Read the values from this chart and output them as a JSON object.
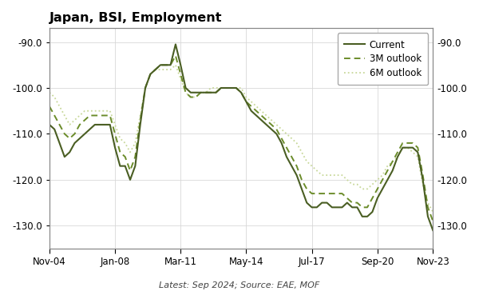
{
  "title": "Japan, BSI, Employment",
  "subtitle": "Latest: Sep 2024; Source: EAE, MOF",
  "ylim": [
    -135,
    -87
  ],
  "yticks": [
    -130.0,
    -120.0,
    -110.0,
    -100.0,
    -90.0
  ],
  "color_current": "#4a5e23",
  "color_3m": "#6b8c2a",
  "color_6m": "#c8d89a",
  "linewidth_current": 1.5,
  "linewidth_3m": 1.4,
  "linewidth_6m": 1.3,
  "x_numeric": [
    0,
    1,
    2,
    3,
    4,
    5,
    6,
    7,
    8,
    9,
    10,
    11,
    12,
    13,
    14,
    15,
    16,
    17,
    18,
    19,
    20,
    21,
    22,
    23,
    24,
    25,
    26,
    27,
    28,
    29,
    30,
    31,
    32,
    33,
    34,
    35,
    36,
    37,
    38,
    39,
    40,
    41,
    42,
    43,
    44,
    45,
    46,
    47,
    48,
    49,
    50,
    51,
    52,
    53,
    54,
    55,
    56,
    57,
    58,
    59,
    60,
    61,
    62,
    63,
    64,
    65,
    66,
    67,
    68,
    69,
    70,
    71,
    72,
    73,
    74,
    75,
    76
  ],
  "current": [
    -108,
    -109,
    -112,
    -115,
    -114,
    -112,
    -111,
    -110,
    -109,
    -108,
    -108,
    -108,
    -108,
    -113,
    -117,
    -117,
    -120,
    -117,
    -108,
    -100,
    -97,
    -96,
    -95,
    -95,
    -95,
    -90.5,
    -95,
    -100,
    -101,
    -101,
    -101,
    -101,
    -101,
    -101,
    -100,
    -100,
    -100,
    -100,
    -101,
    -103,
    -105,
    -106,
    -107,
    -108,
    -109,
    -110,
    -112,
    -115,
    -117,
    -119,
    -122,
    -125,
    -126,
    -126,
    -125,
    -125,
    -126,
    -126,
    -126,
    -125,
    -126,
    -126,
    -128,
    -128,
    -127,
    -124,
    -122,
    -120,
    -118,
    -115,
    -113,
    -113,
    -113,
    -114,
    -120,
    -128,
    -131
  ],
  "outlook_3m": [
    -104,
    -106,
    -108,
    -110,
    -111,
    -110,
    -108,
    -107,
    -106,
    -106,
    -106,
    -106,
    -106,
    -110,
    -114,
    -115,
    -118,
    -115,
    -107,
    -100,
    -97,
    -96,
    -95,
    -95,
    -95,
    -93,
    -97,
    -101,
    -102,
    -102,
    -101,
    -101,
    -101,
    -101,
    -100,
    -100,
    -100,
    -100,
    -101,
    -103,
    -104,
    -105,
    -106,
    -107,
    -108,
    -109,
    -111,
    -113,
    -115,
    -117,
    -120,
    -122,
    -123,
    -123,
    -123,
    -123,
    -123,
    -123,
    -123,
    -124,
    -125,
    -125,
    -126,
    -126,
    -124,
    -122,
    -120,
    -118,
    -116,
    -114,
    -112,
    -112,
    -112,
    -113,
    -119,
    -126,
    -129
  ],
  "outlook_6m": [
    -101,
    -102,
    -104,
    -106,
    -108,
    -107,
    -106,
    -105,
    -105,
    -105,
    -105,
    -105,
    -105,
    -108,
    -111,
    -112,
    -114,
    -112,
    -106,
    -100,
    -97,
    -96,
    -96,
    -96,
    -96,
    -95,
    -98,
    -101,
    -102,
    -102,
    -101,
    -101,
    -100,
    -100,
    -100,
    -100,
    -100,
    -100,
    -100,
    -102,
    -103,
    -104,
    -105,
    -106,
    -107,
    -108,
    -109,
    -110,
    -111,
    -112,
    -114,
    -116,
    -117,
    -118,
    -119,
    -119,
    -119,
    -119,
    -119,
    -120,
    -121,
    -121,
    -122,
    -122,
    -121,
    -120,
    -119,
    -117,
    -116,
    -115,
    -113,
    -113,
    -114,
    -115,
    -121,
    -125,
    -127
  ],
  "xtick_labels": [
    "Nov-04",
    "Jan-08",
    "Mar-11",
    "May-14",
    "Jul-17",
    "Sep-20",
    "Nov-23"
  ],
  "xtick_positions": [
    0,
    13,
    26,
    39,
    52,
    65,
    76
  ],
  "background_color": "#ffffff",
  "grid_color": "#d8d8d8"
}
